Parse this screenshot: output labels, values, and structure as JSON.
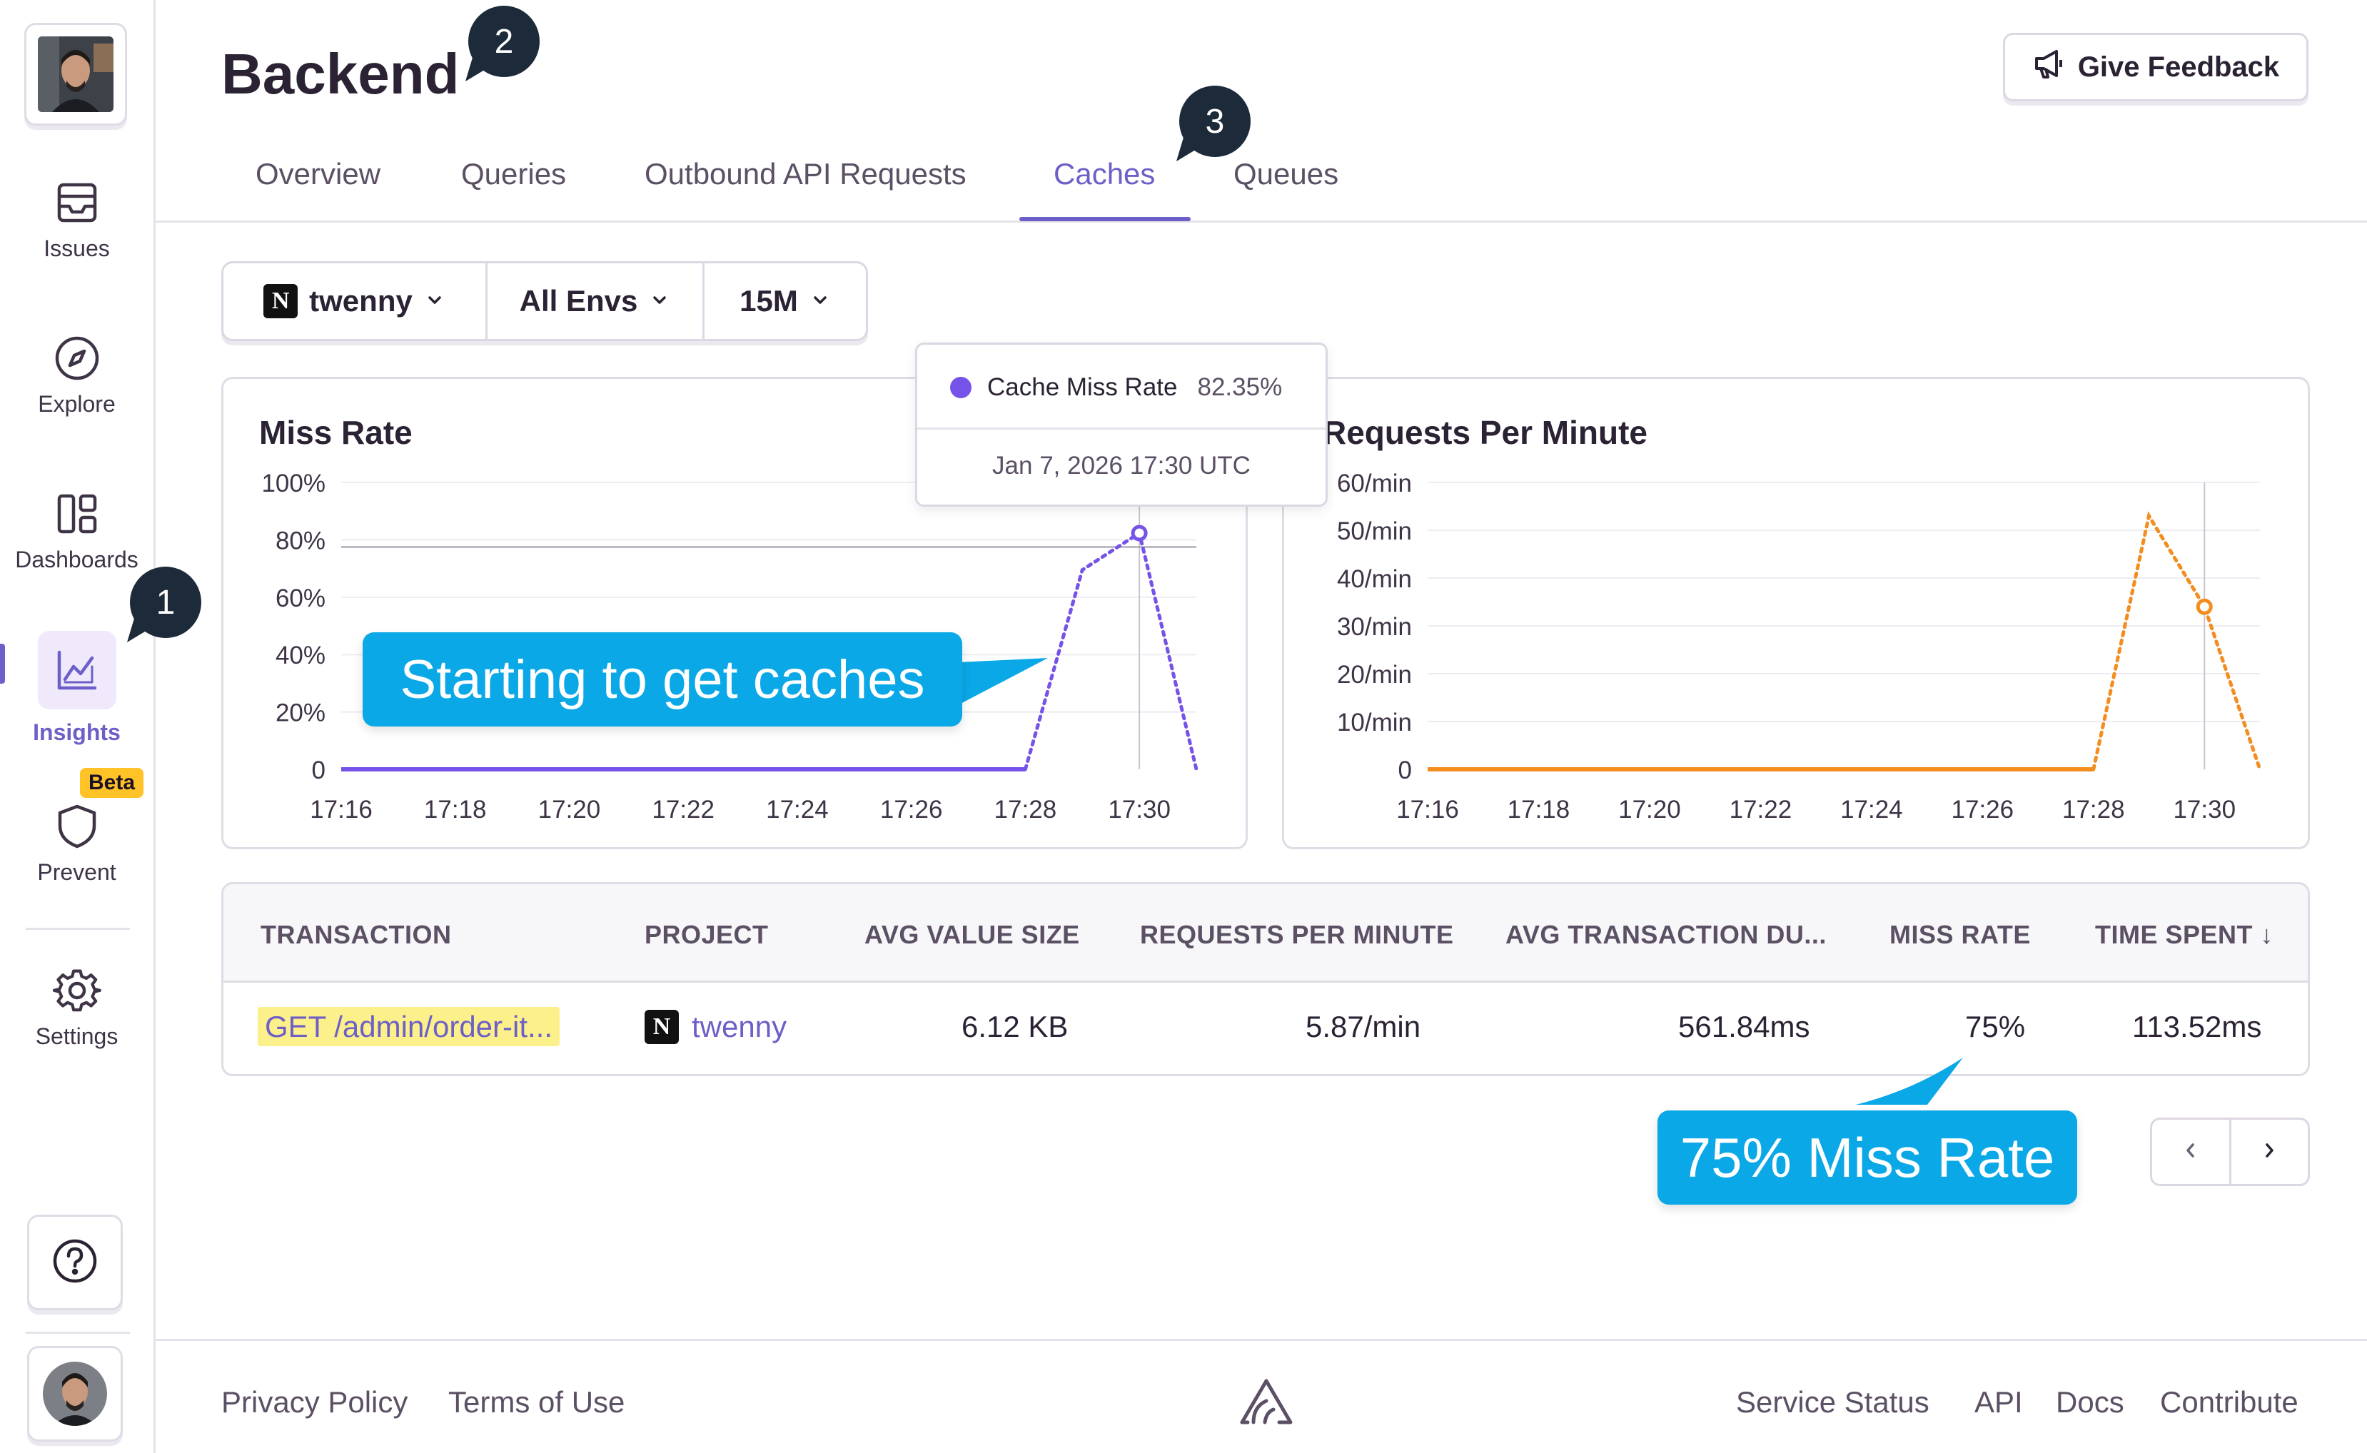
{
  "sidebar": {
    "nav": [
      {
        "label": "Issues",
        "icon": "inbox-icon"
      },
      {
        "label": "Explore",
        "icon": "compass-icon"
      },
      {
        "label": "Dashboards",
        "icon": "dashboards-icon"
      },
      {
        "label": "Insights",
        "icon": "insights-chart-icon",
        "active": true
      },
      {
        "label": "Prevent",
        "icon": "shield-icon",
        "badge": "Beta"
      },
      {
        "label": "Settings",
        "icon": "gear-icon"
      }
    ],
    "help_icon": "question-circle-icon"
  },
  "steps": [
    "1",
    "2",
    "3"
  ],
  "header": {
    "title": "Backend",
    "feedback_label": "Give Feedback",
    "feedback_icon": "megaphone-icon"
  },
  "tabs": [
    {
      "label": "Overview"
    },
    {
      "label": "Queries"
    },
    {
      "label": "Outbound API Requests"
    },
    {
      "label": "Caches",
      "active": true
    },
    {
      "label": "Queues"
    }
  ],
  "filters": {
    "project_logo": "N",
    "project": "twenny",
    "environment": "All Envs",
    "period": "15M"
  },
  "tooltip": {
    "series": "Cache Miss Rate",
    "value": "82.35%",
    "timestamp": "Jan 7, 2026 17:30 UTC"
  },
  "callouts": {
    "chart": "Starting to get caches",
    "table": "75% Miss Rate"
  },
  "chart_data": [
    {
      "type": "line",
      "title": "Miss Rate",
      "x": [
        "17:16",
        "17:18",
        "17:20",
        "17:22",
        "17:24",
        "17:26",
        "17:28",
        "17:30"
      ],
      "y_ticks": [
        "0",
        "20%",
        "40%",
        "60%",
        "80%",
        "100%"
      ],
      "ylim": [
        0,
        100
      ],
      "color": "#7553e8",
      "series": [
        {
          "points": [
            [
              0,
              0
            ],
            [
              1,
              0
            ],
            [
              2,
              0
            ],
            [
              3,
              0
            ],
            [
              4,
              0
            ],
            [
              5,
              0
            ],
            [
              6,
              0
            ],
            [
              7,
              0
            ],
            [
              8,
              0
            ],
            [
              9,
              0
            ],
            [
              10,
              0
            ],
            [
              11,
              0
            ],
            [
              12,
              0
            ],
            [
              13,
              69.5
            ],
            [
              14,
              82.35
            ],
            [
              15,
              0
            ]
          ]
        }
      ],
      "reference_line": 77.5,
      "highlight_index": 14
    },
    {
      "type": "line",
      "title": "Requests Per Minute",
      "x": [
        "17:16",
        "17:18",
        "17:20",
        "17:22",
        "17:24",
        "17:26",
        "17:28",
        "17:30"
      ],
      "y_ticks": [
        "0",
        "10/min",
        "20/min",
        "30/min",
        "40/min",
        "50/min",
        "60/min"
      ],
      "ylim": [
        0,
        60
      ],
      "color": "#f38d1f",
      "series": [
        {
          "points": [
            [
              0,
              0
            ],
            [
              1,
              0
            ],
            [
              2,
              0
            ],
            [
              3,
              0
            ],
            [
              4,
              0
            ],
            [
              5,
              0
            ],
            [
              6,
              0
            ],
            [
              7,
              0
            ],
            [
              8,
              0
            ],
            [
              9,
              0
            ],
            [
              10,
              0
            ],
            [
              11,
              0
            ],
            [
              12,
              0
            ],
            [
              13,
              53
            ],
            [
              14,
              34
            ],
            [
              15,
              0
            ]
          ]
        }
      ],
      "highlight_index": 14
    }
  ],
  "table": {
    "columns": [
      "TRANSACTION",
      "PROJECT",
      "AVG VALUE SIZE",
      "REQUESTS PER MINUTE",
      "AVG TRANSACTION DU...",
      "MISS RATE",
      "TIME SPENT ↓"
    ],
    "rows": [
      {
        "transaction": "GET /admin/order-it...",
        "project_logo": "N",
        "project": "twenny",
        "avg_value_size": "6.12 KB",
        "requests_per_minute": "5.87/min",
        "avg_transaction_duration": "561.84ms",
        "miss_rate": "75%",
        "time_spent": "113.52ms"
      }
    ]
  },
  "footer": {
    "left": [
      "Privacy Policy",
      "Terms of Use"
    ],
    "right": [
      "Service Status",
      "API",
      "Docs",
      "Contribute"
    ],
    "logo_icon": "sentry-logo-icon"
  }
}
